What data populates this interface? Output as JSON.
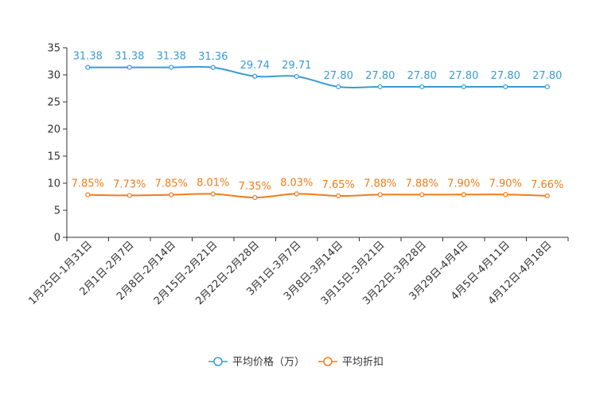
{
  "chart_data": {
    "type": "line",
    "categories": [
      "1月25日-1月31日",
      "2月1日-2月7日",
      "2月8日-2月14日",
      "2月15日-2月21日",
      "2月22日-2月28日",
      "3月1日-3月7日",
      "3月8日-3月14日",
      "3月15日-3月21日",
      "3月22日-3月28日",
      "3月29日-4月4日",
      "4月5日-4月11日",
      "4月12日-4月18日"
    ],
    "ylim": [
      0,
      35
    ],
    "yticks": [
      0,
      5,
      10,
      15,
      20,
      25,
      30,
      35
    ],
    "series": [
      {
        "name": "平均价格（万）",
        "color": "#3a9bd5",
        "values": [
          31.38,
          31.38,
          31.38,
          31.36,
          29.74,
          29.71,
          27.8,
          27.8,
          27.8,
          27.8,
          27.8,
          27.8
        ],
        "labels": [
          "31.38",
          "31.38",
          "31.38",
          "31.36",
          "29.74",
          "29.71",
          "27.80",
          "27.80",
          "27.80",
          "27.80",
          "27.80",
          "27.80"
        ]
      },
      {
        "name": "平均折扣",
        "color": "#f07c1b",
        "values": [
          7.85,
          7.73,
          7.85,
          8.01,
          7.35,
          8.03,
          7.65,
          7.88,
          7.88,
          7.9,
          7.9,
          7.66
        ],
        "labels": [
          "7.85%",
          "7.73%",
          "7.85%",
          "8.01%",
          "7.35%",
          "8.03%",
          "7.65%",
          "7.88%",
          "7.88%",
          "7.90%",
          "7.90%",
          "7.66%"
        ]
      }
    ]
  }
}
